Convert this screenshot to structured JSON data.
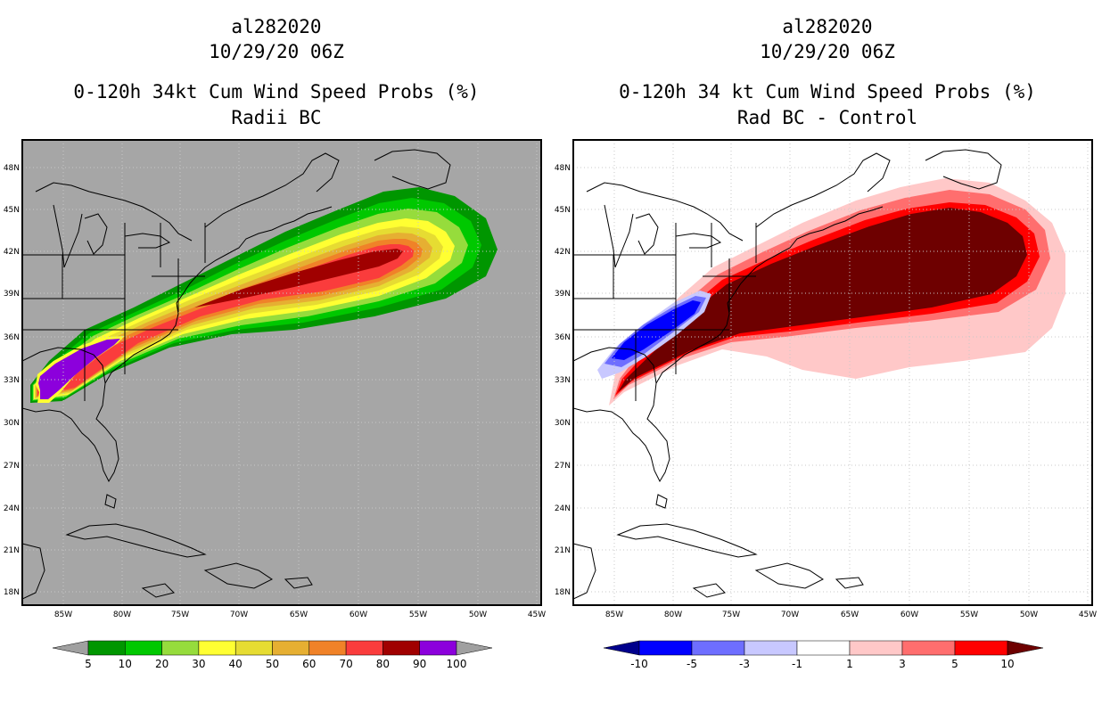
{
  "left": {
    "storm_id": "al282020",
    "datetime": "10/29/20 06Z",
    "title": "0-120h 34kt Cum Wind Speed Probs (%)",
    "subtitle": "Radii BC",
    "colorbar": {
      "labels": [
        "5",
        "10",
        "20",
        "30",
        "40",
        "50",
        "60",
        "70",
        "80",
        "90",
        "100"
      ],
      "colors": [
        "#009600",
        "#00c800",
        "#96dc3c",
        "#ffff32",
        "#e6dc32",
        "#e6af32",
        "#f08228",
        "#fa3c3c",
        "#a00000",
        "#8c00dc"
      ],
      "under_color": "#a0a0a0",
      "over_color": "#a0a0a0"
    },
    "background_color": "#a6a6a6"
  },
  "right": {
    "storm_id": "al282020",
    "datetime": "10/29/20 06Z",
    "title": "0-120h 34 kt Cum Wind Speed Probs (%)",
    "subtitle": "Rad BC - Control",
    "colorbar": {
      "labels": [
        "-10",
        "-5",
        "-3",
        "-1",
        "1",
        "3",
        "5",
        "10"
      ],
      "colors": [
        "#0000ff",
        "#6e6eff",
        "#c8c8ff",
        "#ffffff",
        "#ffc8c8",
        "#ff6e6e",
        "#ff0000"
      ],
      "under_color": "#00008c",
      "over_color": "#6e0000"
    },
    "background_color": "#ffffff"
  },
  "map": {
    "lat_labels": [
      "48N",
      "45N",
      "42N",
      "39N",
      "36N",
      "33N",
      "30N",
      "27N",
      "24N",
      "21N",
      "18N"
    ],
    "lon_labels": [
      "85W",
      "80W",
      "75W",
      "70W",
      "65W",
      "60W",
      "55W",
      "50W",
      "45W"
    ]
  }
}
